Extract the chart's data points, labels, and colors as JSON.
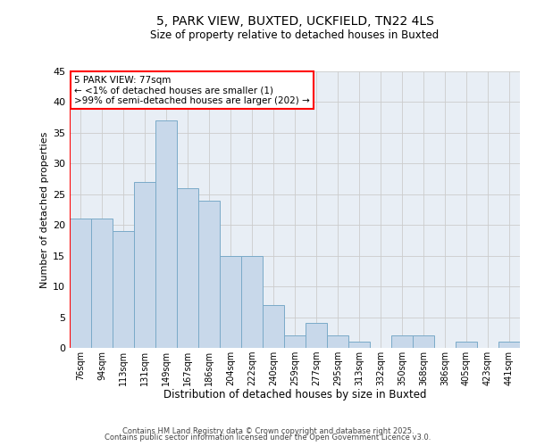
{
  "title1": "5, PARK VIEW, BUXTED, UCKFIELD, TN22 4LS",
  "title2": "Size of property relative to detached houses in Buxted",
  "xlabel": "Distribution of detached houses by size in Buxted",
  "ylabel": "Number of detached properties",
  "bar_color": "#c8d8ea",
  "bar_edge_color": "#7aaac8",
  "bg_color": "#e8eef5",
  "categories": [
    "76sqm",
    "94sqm",
    "113sqm",
    "131sqm",
    "149sqm",
    "167sqm",
    "186sqm",
    "204sqm",
    "222sqm",
    "240sqm",
    "259sqm",
    "277sqm",
    "295sqm",
    "313sqm",
    "332sqm",
    "350sqm",
    "368sqm",
    "386sqm",
    "405sqm",
    "423sqm",
    "441sqm"
  ],
  "values": [
    21,
    21,
    19,
    27,
    37,
    26,
    24,
    15,
    15,
    7,
    2,
    4,
    2,
    1,
    0,
    2,
    2,
    0,
    1,
    0,
    1
  ],
  "ylim": [
    0,
    45
  ],
  "yticks": [
    0,
    5,
    10,
    15,
    20,
    25,
    30,
    35,
    40,
    45
  ],
  "annotation_box_text": "5 PARK VIEW: 77sqm\n← <1% of detached houses are smaller (1)\n>99% of semi-detached houses are larger (202) →",
  "footnote1": "Contains HM Land Registry data © Crown copyright and database right 2025.",
  "footnote2": "Contains public sector information licensed under the Open Government Licence v3.0.",
  "grid_color": "#cccccc"
}
